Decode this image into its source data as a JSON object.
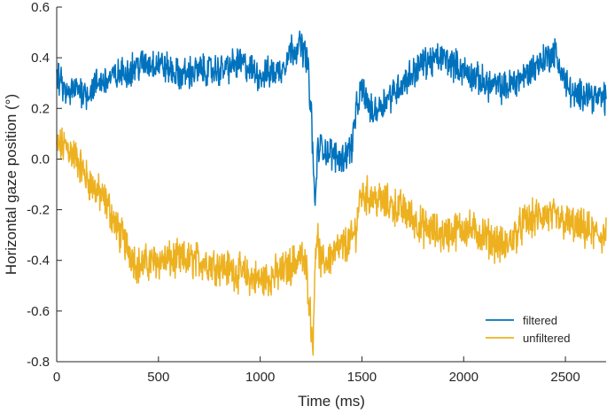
{
  "chart_data": {
    "type": "line",
    "xlabel": "Time (ms)",
    "ylabel": "Horizontal gaze position (°)",
    "xlim": [
      0,
      2700
    ],
    "ylim": [
      -0.8,
      0.6
    ],
    "xticks": [
      "0",
      "500",
      "1000",
      "1500",
      "2000",
      "2500"
    ],
    "yticks": [
      "0.6",
      "0.4",
      "0.2",
      "0.0",
      "-0.2",
      "-0.4",
      "-0.6",
      "-0.8"
    ],
    "legend_position": "bottom-right",
    "grid": false,
    "series": [
      {
        "name": "filtered",
        "color": "#0072BD",
        "x": [
          0,
          50,
          100,
          150,
          200,
          300,
          400,
          500,
          600,
          700,
          800,
          900,
          1000,
          1100,
          1150,
          1200,
          1230,
          1250,
          1262,
          1270,
          1280,
          1300,
          1350,
          1400,
          1450,
          1470,
          1490,
          1500,
          1550,
          1600,
          1700,
          1800,
          1900,
          2000,
          2100,
          2200,
          2300,
          2400,
          2450,
          2500,
          2550,
          2600,
          2650,
          2700
        ],
        "y": [
          0.33,
          0.25,
          0.28,
          0.26,
          0.3,
          0.33,
          0.37,
          0.38,
          0.33,
          0.35,
          0.35,
          0.38,
          0.33,
          0.35,
          0.43,
          0.45,
          0.4,
          0.2,
          -0.05,
          -0.2,
          0.02,
          0.05,
          0.02,
          0.0,
          0.05,
          0.18,
          0.25,
          0.28,
          0.18,
          0.22,
          0.3,
          0.38,
          0.4,
          0.35,
          0.3,
          0.28,
          0.33,
          0.4,
          0.42,
          0.3,
          0.24,
          0.27,
          0.24,
          0.24
        ]
      },
      {
        "name": "unfiltered",
        "color": "#EDB120",
        "x": [
          0,
          50,
          100,
          150,
          200,
          250,
          300,
          350,
          400,
          500,
          600,
          700,
          800,
          900,
          1000,
          1100,
          1150,
          1200,
          1230,
          1250,
          1262,
          1270,
          1280,
          1300,
          1350,
          1400,
          1450,
          1470,
          1490,
          1500,
          1550,
          1600,
          1700,
          1800,
          1900,
          2000,
          2100,
          2200,
          2300,
          2400,
          2500,
          2550,
          2600,
          2650,
          2700
        ],
        "y": [
          0.05,
          0.05,
          0.0,
          -0.08,
          -0.13,
          -0.18,
          -0.28,
          -0.35,
          -0.42,
          -0.4,
          -0.4,
          -0.4,
          -0.42,
          -0.45,
          -0.48,
          -0.45,
          -0.42,
          -0.38,
          -0.45,
          -0.65,
          -0.72,
          -0.35,
          -0.3,
          -0.42,
          -0.38,
          -0.35,
          -0.32,
          -0.28,
          -0.15,
          -0.14,
          -0.15,
          -0.17,
          -0.2,
          -0.27,
          -0.3,
          -0.27,
          -0.3,
          -0.35,
          -0.25,
          -0.22,
          -0.25,
          -0.27,
          -0.28,
          -0.3,
          -0.3
        ]
      }
    ]
  }
}
